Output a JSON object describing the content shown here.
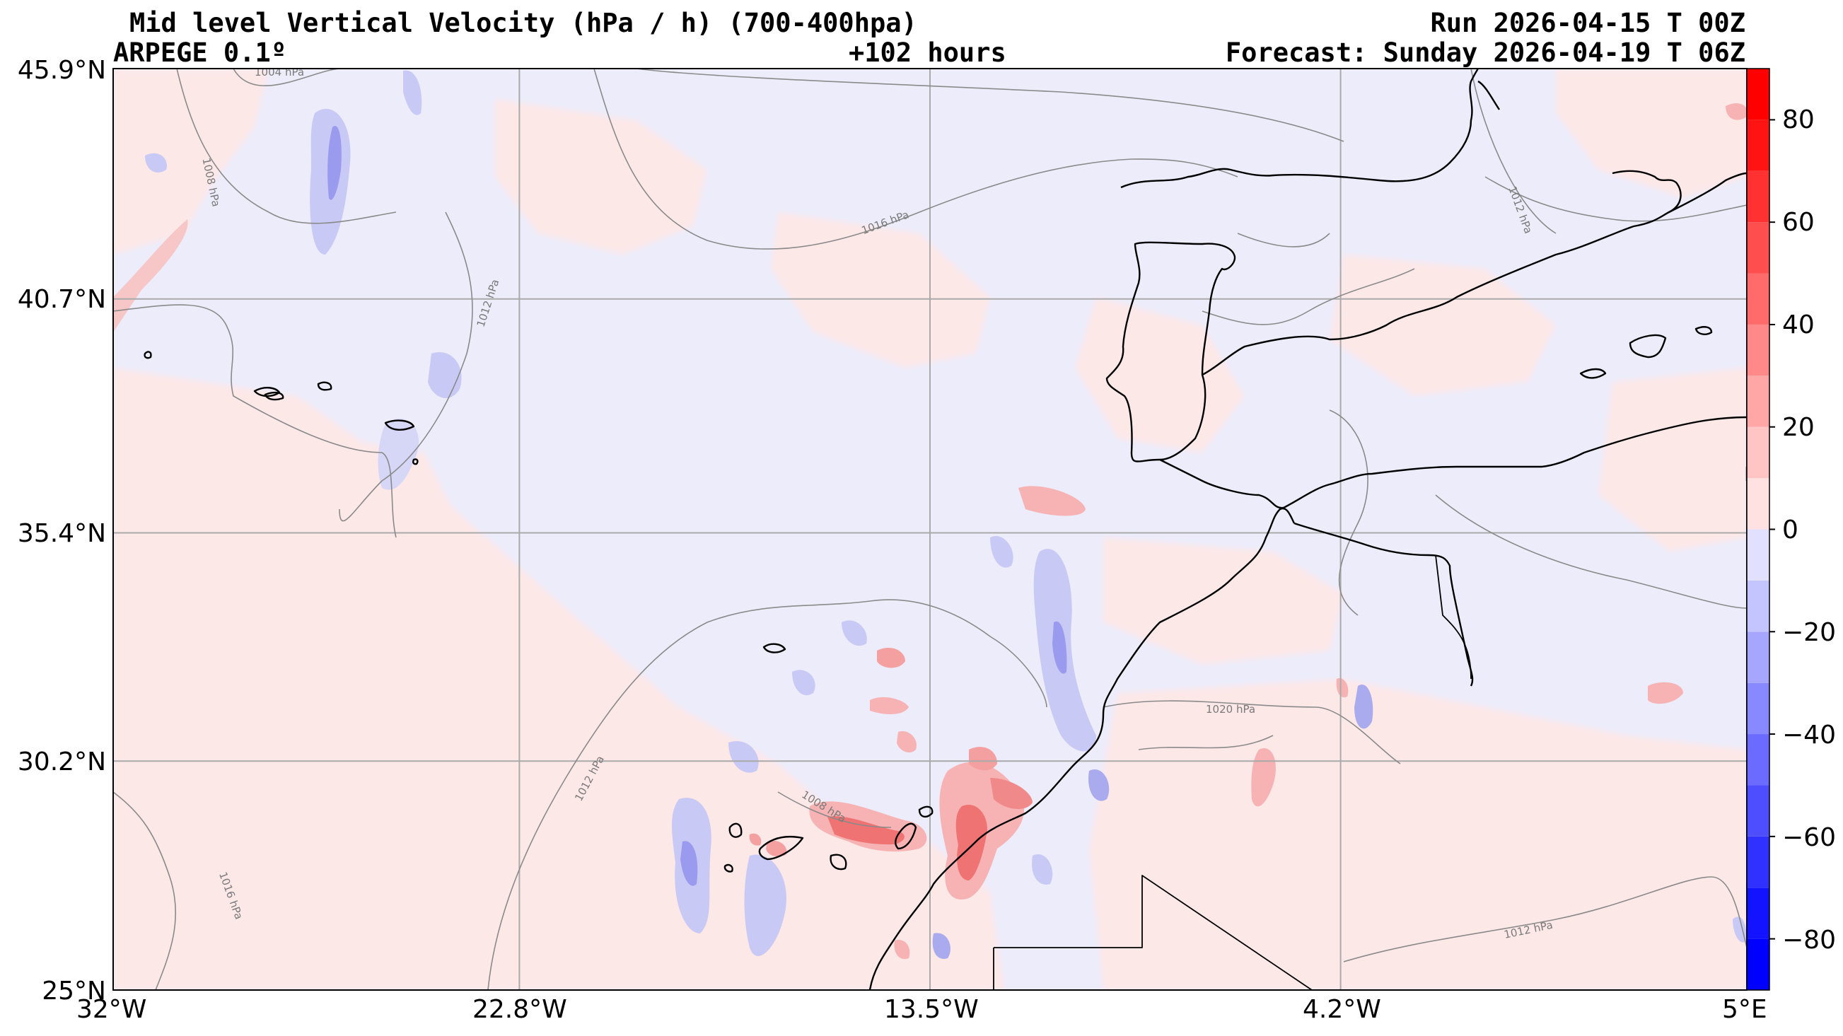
{
  "header": {
    "title": "Mid level Vertical Velocity (hPa / h)  (700-400hpa)",
    "model": "ARPEGE 0.1º",
    "lead": "+102 hours",
    "run": "Run 2026-04-15 T 00Z",
    "forecast": "Forecast: Sunday 2026-04-19 T 06Z"
  },
  "map": {
    "lat_labels": [
      "45.9°N",
      "40.7°N",
      "35.4°N",
      "30.2°N",
      "25°N"
    ],
    "lon_labels": [
      "32°W",
      "22.8°W",
      "13.5°W",
      "4.2°W",
      "5°E"
    ],
    "lat_range": [
      25,
      45.9
    ],
    "lon_range": [
      -32,
      5
    ],
    "isobar_labels": [
      "1004 hPa",
      "1008 hPa",
      "1012 hPa",
      "1016 hPa",
      "1012 hPa",
      "1016 hPa",
      "1008 hPa",
      "1020 hPa",
      "1012 hPa",
      "1012 hPa"
    ]
  },
  "colorbar": {
    "ticks": [
      "80",
      "60",
      "40",
      "20",
      "0",
      "−20",
      "−40",
      "−60",
      "−80"
    ],
    "range": [
      -90,
      90
    ],
    "step": 10,
    "positive_color": "#ff0000",
    "negative_color": "#0000ff"
  },
  "colors": {
    "weak_positive": "#fde8e8",
    "weak_negative": "#ececfb",
    "coastline": "#000000",
    "isobar": "#8a8a8a",
    "grid": "#aaaaaa"
  }
}
